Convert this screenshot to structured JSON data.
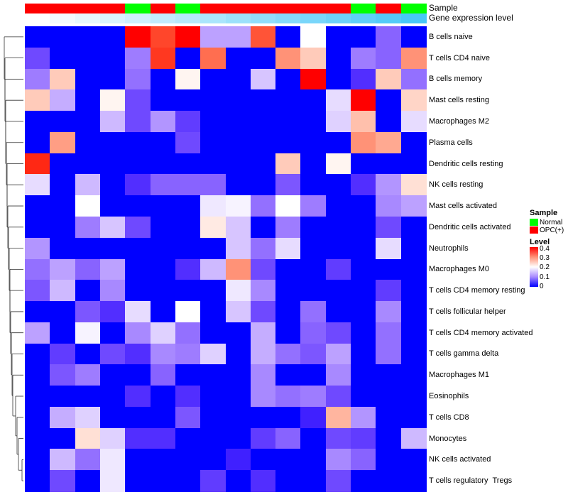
{
  "chart_data": {
    "type": "heatmap",
    "title": "",
    "annotations": {
      "sample_label": "Sample",
      "gene_label": "Gene expression level",
      "sample": [
        "OPC(+)",
        "OPC(+)",
        "OPC(+)",
        "OPC(+)",
        "Normal",
        "OPC(+)",
        "Normal",
        "OPC(+)",
        "OPC(+)",
        "OPC(+)",
        "OPC(+)",
        "OPC(+)",
        "OPC(+)",
        "Normal",
        "OPC(+)",
        "Normal"
      ],
      "gene_expression_order": "increasing left to right"
    },
    "rows": [
      "B cells naive",
      "T cells CD4 naive",
      "B cells memory",
      "Mast cells resting",
      "Macrophages M2",
      "Plasma cells",
      "Dendritic cells resting",
      "NK cells resting",
      "Mast cells activated",
      "Dendritic cells activated",
      "Neutrophils",
      "Macrophages M0",
      "T cells CD4 memory resting",
      "T cells follicular helper",
      "T cells CD4 memory activated",
      "T cells gamma delta",
      "Macrophages M1",
      "Eosinophils",
      "T cells CD8",
      "Monocytes",
      "NK cells activated",
      "T cells regulatory  Tregs"
    ],
    "values": [
      [
        0,
        0,
        0,
        0,
        0.4,
        0.36,
        0.4,
        0.12,
        0.12,
        0.35,
        0,
        0.2,
        0,
        0,
        0.07,
        0
      ],
      [
        0.05,
        0,
        0,
        0,
        0.09,
        0.37,
        0,
        0.33,
        0,
        0,
        0.3,
        0.25,
        0,
        0.09,
        0.07,
        0.3
      ],
      [
        0.09,
        0.25,
        0,
        0,
        0.08,
        0,
        0.21,
        0,
        0,
        0.15,
        0,
        0.4,
        0,
        0.03,
        0.25,
        0.08
      ],
      [
        0.25,
        0.13,
        0,
        0.21,
        0.05,
        0,
        0,
        0,
        0,
        0,
        0,
        0,
        0.17,
        0.4,
        0,
        0.24
      ],
      [
        0,
        0,
        0,
        0.14,
        0.05,
        0.11,
        0.04,
        0,
        0,
        0,
        0,
        0,
        0.16,
        0.26,
        0,
        0.17
      ],
      [
        0,
        0.29,
        0,
        0,
        0,
        0,
        0.05,
        0,
        0,
        0,
        0,
        0,
        0,
        0.3,
        0.28,
        0
      ],
      [
        0.38,
        0,
        0,
        0,
        0,
        0,
        0,
        0,
        0,
        0,
        0.25,
        0,
        0.21,
        0,
        0,
        0
      ],
      [
        0.17,
        0,
        0.14,
        0,
        0.03,
        0.07,
        0.07,
        0.07,
        0,
        0,
        0.06,
        0,
        0,
        0.03,
        0.11,
        0.23
      ],
      [
        0,
        0,
        0.2,
        0,
        0,
        0,
        0,
        0.18,
        0.19,
        0.08,
        0.2,
        0.09,
        0,
        0,
        0.1,
        0.12
      ],
      [
        0,
        0,
        0.09,
        0.15,
        0.05,
        0,
        0,
        0.22,
        0.15,
        0,
        0.09,
        0,
        0,
        0,
        0.05,
        0
      ],
      [
        0.11,
        0,
        0,
        0,
        0,
        0,
        0,
        0,
        0.15,
        0.08,
        0.17,
        0,
        0,
        0,
        0.17,
        0
      ],
      [
        0.08,
        0.12,
        0.07,
        0.12,
        0,
        0,
        0.03,
        0.14,
        0.3,
        0.05,
        0,
        0,
        0.04,
        0,
        0,
        0
      ],
      [
        0.06,
        0.14,
        0,
        0.1,
        0,
        0,
        0,
        0,
        0.18,
        0.1,
        0,
        0,
        0,
        0,
        0.04,
        0
      ],
      [
        0,
        0,
        0.06,
        0.03,
        0.17,
        0,
        0.2,
        0,
        0.15,
        0.05,
        0,
        0.08,
        0,
        0,
        0.1,
        0
      ],
      [
        0.12,
        0,
        0.19,
        0,
        0.1,
        0.16,
        0.08,
        0,
        0,
        0.13,
        0,
        0.07,
        0.05,
        0,
        0.08,
        0
      ],
      [
        0,
        0.04,
        0,
        0.05,
        0.03,
        0.1,
        0.09,
        0.16,
        0,
        0.13,
        0.08,
        0.06,
        0.12,
        0,
        0.08,
        0
      ],
      [
        0,
        0.06,
        0.09,
        0,
        0,
        0.07,
        0,
        0,
        0,
        0.1,
        0,
        0,
        0.1,
        0,
        0,
        0
      ],
      [
        0,
        0,
        0,
        0,
        0.03,
        0,
        0.03,
        0,
        0,
        0.1,
        0.08,
        0.09,
        0.05,
        0,
        0,
        0
      ],
      [
        0,
        0.13,
        0.16,
        0,
        0,
        0,
        0.06,
        0,
        0,
        0,
        0,
        0.02,
        0.27,
        0.11,
        0,
        0
      ],
      [
        0,
        0,
        0.23,
        0.16,
        0.03,
        0.03,
        0,
        0,
        0,
        0.04,
        0.07,
        0,
        0.05,
        0.04,
        0,
        0.14
      ],
      [
        0,
        0.14,
        0.08,
        0.18,
        0,
        0,
        0,
        0,
        0.02,
        0,
        0,
        0,
        0.1,
        0.07,
        0,
        0
      ],
      [
        0,
        0.05,
        0,
        0.18,
        0,
        0,
        0,
        0.04,
        0,
        0.03,
        0,
        0,
        0.05,
        0,
        0,
        0
      ]
    ],
    "color_scale": {
      "low": "#0000FF",
      "mid": "#FFFFFF",
      "high": "#FF0000",
      "range": [
        0,
        0.4
      ]
    },
    "legend": {
      "sample_title": "Sample",
      "sample_entries": [
        {
          "label": "Normal",
          "color": "#00FF00"
        },
        {
          "label": "OPC(+)",
          "color": "#FF0000"
        }
      ],
      "level_title": "Level",
      "level_ticks": [
        "0.4",
        "0.3",
        "0.2",
        "0.1",
        "0"
      ],
      "placement": "right"
    }
  }
}
